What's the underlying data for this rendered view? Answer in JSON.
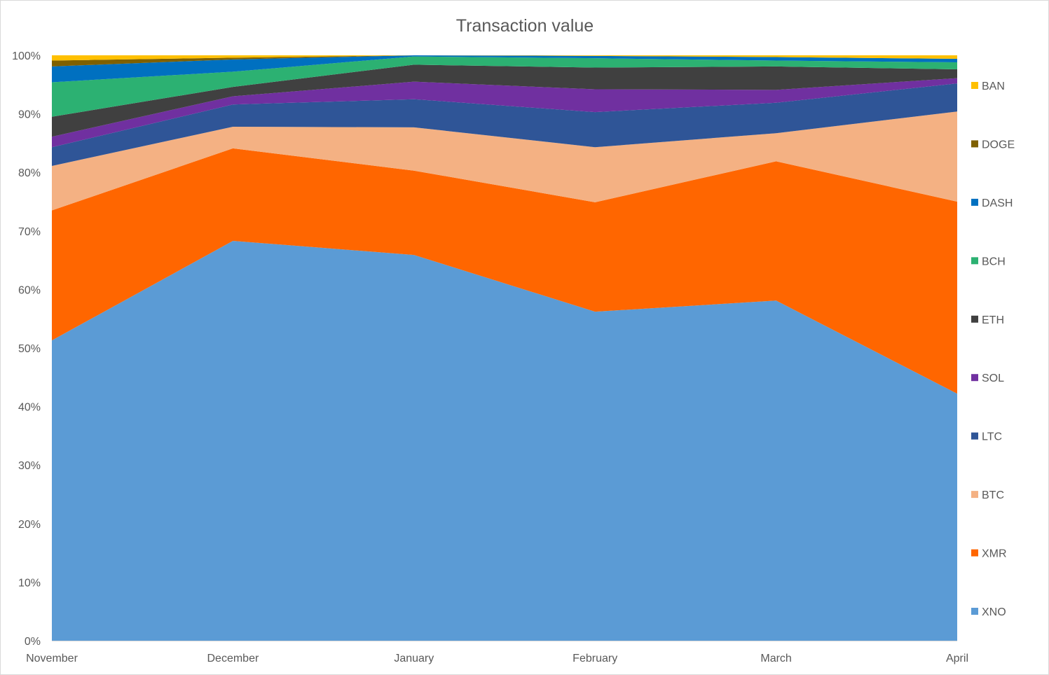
{
  "chart_data": {
    "type": "area",
    "stacked": true,
    "normalized": true,
    "title": "Transaction value",
    "xlabel": "",
    "ylabel": "",
    "categories": [
      "November",
      "December",
      "January",
      "February",
      "March",
      "April"
    ],
    "ylim": [
      0,
      100
    ],
    "yticks": [
      "0%",
      "10%",
      "20%",
      "30%",
      "40%",
      "50%",
      "60%",
      "70%",
      "80%",
      "90%",
      "100%"
    ],
    "grid": false,
    "legend_position": "right",
    "series": [
      {
        "name": "XNO",
        "color": "#5B9BD5",
        "values": [
          51.3,
          68.3,
          65.9,
          56.2,
          58.1,
          42.2
        ]
      },
      {
        "name": "XMR",
        "color": "#FF6600",
        "values": [
          22.2,
          15.8,
          14.4,
          18.7,
          23.8,
          32.8
        ]
      },
      {
        "name": "BTC",
        "color": "#F4B183",
        "values": [
          7.6,
          3.7,
          7.4,
          9.4,
          4.8,
          15.4
        ]
      },
      {
        "name": "LTC",
        "color": "#2F5597",
        "values": [
          3.2,
          3.8,
          4.8,
          6.0,
          5.2,
          4.8
        ]
      },
      {
        "name": "SOL",
        "color": "#7030A0",
        "values": [
          1.8,
          1.4,
          3.0,
          3.9,
          2.2,
          0.9
        ]
      },
      {
        "name": "ETH",
        "color": "#404040",
        "values": [
          3.4,
          1.6,
          2.9,
          3.7,
          4.0,
          1.5
        ]
      },
      {
        "name": "BCH",
        "color": "#2CB172",
        "values": [
          5.9,
          2.6,
          1.4,
          1.6,
          1.0,
          1.2
        ]
      },
      {
        "name": "DASH",
        "color": "#0070C0",
        "values": [
          2.7,
          2.1,
          0.2,
          0.4,
          0.6,
          0.6
        ]
      },
      {
        "name": "DOGE",
        "color": "#7F6000",
        "values": [
          1.0,
          0.3,
          0.0,
          0.0,
          0.0,
          0.0
        ]
      },
      {
        "name": "BAN",
        "color": "#FFC000",
        "values": [
          0.9,
          0.4,
          0.0,
          0.1,
          0.3,
          0.6
        ]
      }
    ]
  }
}
